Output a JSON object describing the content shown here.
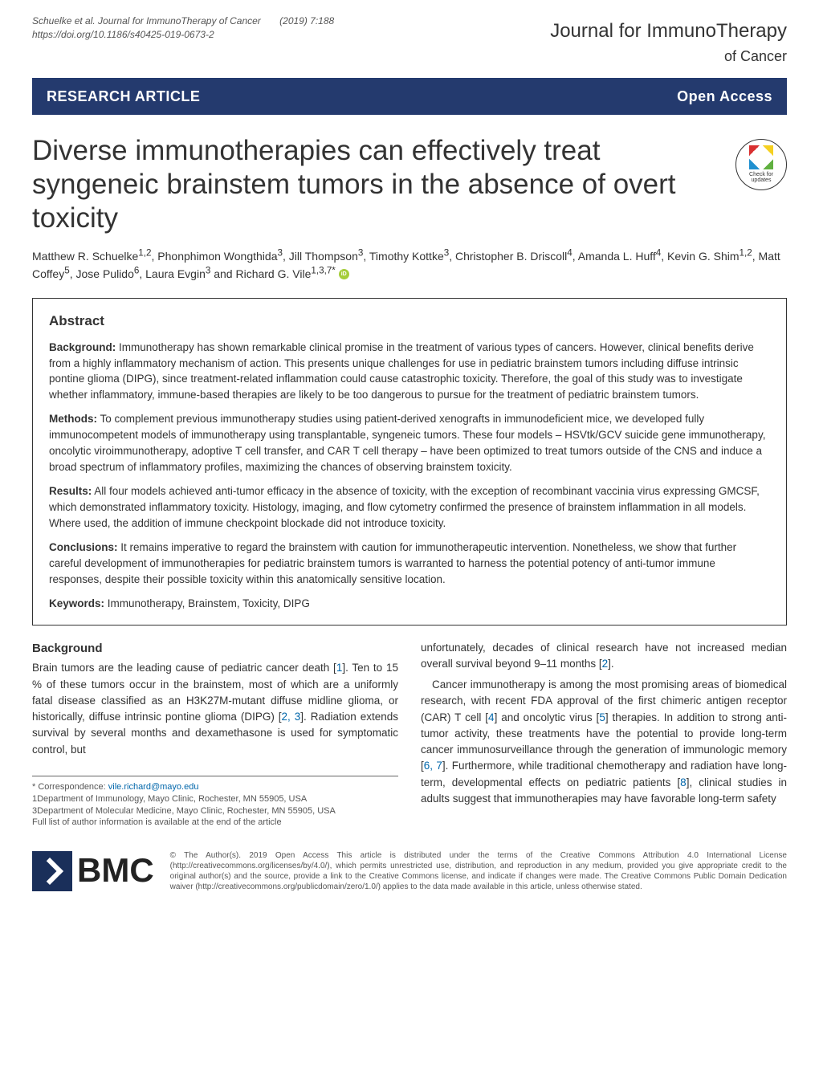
{
  "header": {
    "citation_line1": "Schuelke et al. Journal for ImmunoTherapy of Cancer",
    "citation_line2": "https://doi.org/10.1186/s40425-019-0673-2",
    "year_issue": "(2019) 7:188",
    "journal_name": "Journal for ImmunoTherapy",
    "journal_sub": "of Cancer"
  },
  "banner": {
    "left": "RESEARCH ARTICLE",
    "right": "Open Access"
  },
  "title": "Diverse immunotherapies can effectively treat syngeneic brainstem tumors in the absence of overt toxicity",
  "crossmark": {
    "line1": "Check for",
    "line2": "updates"
  },
  "authors_html": "Matthew R. Schuelke<sup>1,2</sup>, Phonphimon Wongthida<sup>3</sup>, Jill Thompson<sup>3</sup>, Timothy Kottke<sup>3</sup>, Christopher B. Driscoll<sup>4</sup>, Amanda L. Huff<sup>4</sup>, Kevin G. Shim<sup>1,2</sup>, Matt Coffey<sup>5</sup>, Jose Pulido<sup>6</sup>, Laura Evgin<sup>3</sup> and Richard G. Vile<sup>1,3,7*</sup>",
  "abstract": {
    "heading": "Abstract",
    "background_label": "Background:",
    "background_text": " Immunotherapy has shown remarkable clinical promise in the treatment of various types of cancers. However, clinical benefits derive from a highly inflammatory mechanism of action. This presents unique challenges for use in pediatric brainstem tumors including diffuse intrinsic pontine glioma (DIPG), since treatment-related inflammation could cause catastrophic toxicity. Therefore, the goal of this study was to investigate whether inflammatory, immune-based therapies are likely to be too dangerous to pursue for the treatment of pediatric brainstem tumors.",
    "methods_label": "Methods:",
    "methods_text": " To complement previous immunotherapy studies using patient-derived xenografts in immunodeficient mice, we developed fully immunocompetent models of immunotherapy using transplantable, syngeneic tumors. These four models – HSVtk/GCV suicide gene immunotherapy, oncolytic viroimmunotherapy, adoptive T cell transfer, and CAR T cell therapy – have been optimized to treat tumors outside of the CNS and induce a broad spectrum of inflammatory profiles, maximizing the chances of observing brainstem toxicity.",
    "results_label": "Results:",
    "results_text": " All four models achieved anti-tumor efficacy in the absence of toxicity, with the exception of recombinant vaccinia virus expressing GMCSF, which demonstrated inflammatory toxicity. Histology, imaging, and flow cytometry confirmed the presence of brainstem inflammation in all models. Where used, the addition of immune checkpoint blockade did not introduce toxicity.",
    "conclusions_label": "Conclusions:",
    "conclusions_text": " It remains imperative to regard the brainstem with caution for immunotherapeutic intervention. Nonetheless, we show that further careful development of immunotherapies for pediatric brainstem tumors is warranted to harness the potential potency of anti-tumor immune responses, despite their possible toxicity within this anatomically sensitive location.",
    "keywords_label": "Keywords:",
    "keywords_text": " Immunotherapy, Brainstem, Toxicity, DIPG"
  },
  "body": {
    "background_heading": "Background",
    "left_col_text": "Brain tumors are the leading cause of pediatric cancer death [1]. Ten to 15 % of these tumors occur in the brainstem, most of which are a uniformly fatal disease classified as an H3K27M-mutant diffuse midline glioma, or historically, diffuse intrinsic pontine glioma (DIPG) [2, 3]. Radiation extends survival by several months and dexamethasone is used for symptomatic control, but",
    "right_col_p1": "unfortunately, decades of clinical research have not increased median overall survival beyond 9–11 months [2].",
    "right_col_p2": "Cancer immunotherapy is among the most promising areas of biomedical research, with recent FDA approval of the first chimeric antigen receptor (CAR) T cell [4] and oncolytic virus [5] therapies. In addition to strong anti-tumor activity, these treatments have the potential to provide long-term cancer immunosurveillance through the generation of immunologic memory [6, 7]. Furthermore, while traditional chemotherapy and radiation have long-term, developmental effects on pediatric patients [8], clinical studies in adults suggest that immunotherapies may have favorable long-term safety"
  },
  "footnote": {
    "correspondence_label": "* Correspondence: ",
    "correspondence_email": "vile.richard@mayo.edu",
    "aff1": "1Department of Immunology, Mayo Clinic, Rochester, MN 55905, USA",
    "aff3": "3Department of Molecular Medicine, Mayo Clinic, Rochester, MN 55905, USA",
    "full_list": "Full list of author information is available at the end of the article"
  },
  "footer": {
    "bmc": "BMC",
    "license": "© The Author(s). 2019 Open Access This article is distributed under the terms of the Creative Commons Attribution 4.0 International License (http://creativecommons.org/licenses/by/4.0/), which permits unrestricted use, distribution, and reproduction in any medium, provided you give appropriate credit to the original author(s) and the source, provide a link to the Creative Commons license, and indicate if changes were made. The Creative Commons Public Domain Dedication waiver (http://creativecommons.org/publicdomain/zero/1.0/) applies to the data made available in this article, unless otherwise stated."
  },
  "colors": {
    "banner_bg": "#243a6e",
    "link": "#0066aa",
    "text": "#333333",
    "border": "#333333"
  }
}
